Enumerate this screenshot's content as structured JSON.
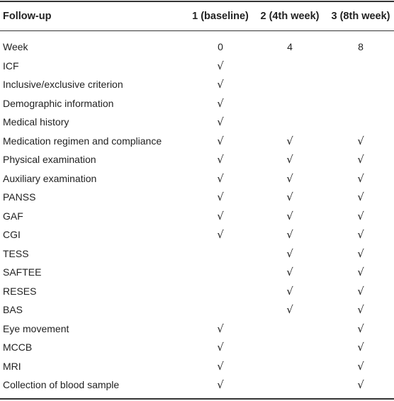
{
  "header": {
    "col0": "Follow-up",
    "col1": "1 (baseline)",
    "col2": "2 (4th week)",
    "col3": "3 (8th week)"
  },
  "rows": [
    {
      "label": "Week",
      "v1": "0",
      "v2": "4",
      "v3": "8"
    },
    {
      "label": "ICF",
      "v1": "√",
      "v2": "",
      "v3": ""
    },
    {
      "label": "Inclusive/exclusive criterion",
      "v1": "√",
      "v2": "",
      "v3": ""
    },
    {
      "label": "Demographic information",
      "v1": "√",
      "v2": "",
      "v3": ""
    },
    {
      "label": "Medical history",
      "v1": "√",
      "v2": "",
      "v3": ""
    },
    {
      "label": "Medication regimen and compliance",
      "v1": "√",
      "v2": "√",
      "v3": "√"
    },
    {
      "label": "Physical examination",
      "v1": "√",
      "v2": "√",
      "v3": "√"
    },
    {
      "label": "Auxiliary examination",
      "v1": "√",
      "v2": "√",
      "v3": "√"
    },
    {
      "label": "PANSS",
      "v1": "√",
      "v2": "√",
      "v3": "√"
    },
    {
      "label": "GAF",
      "v1": "√",
      "v2": "√",
      "v3": "√"
    },
    {
      "label": "CGI",
      "v1": "√",
      "v2": "√",
      "v3": "√"
    },
    {
      "label": "TESS",
      "v1": "",
      "v2": "√",
      "v3": "√"
    },
    {
      "label": "SAFTEE",
      "v1": "",
      "v2": "√",
      "v3": "√"
    },
    {
      "label": "RESES",
      "v1": "",
      "v2": "√",
      "v3": "√"
    },
    {
      "label": "BAS",
      "v1": "",
      "v2": "√",
      "v3": "√"
    },
    {
      "label": "Eye movement",
      "v1": "√",
      "v2": "",
      "v3": "√"
    },
    {
      "label": "MCCB",
      "v1": "√",
      "v2": "",
      "v3": "√"
    },
    {
      "label": "MRI",
      "v1": "√",
      "v2": "",
      "v3": "√"
    },
    {
      "label": "Collection of blood sample",
      "v1": "√",
      "v2": "",
      "v3": "√"
    }
  ]
}
